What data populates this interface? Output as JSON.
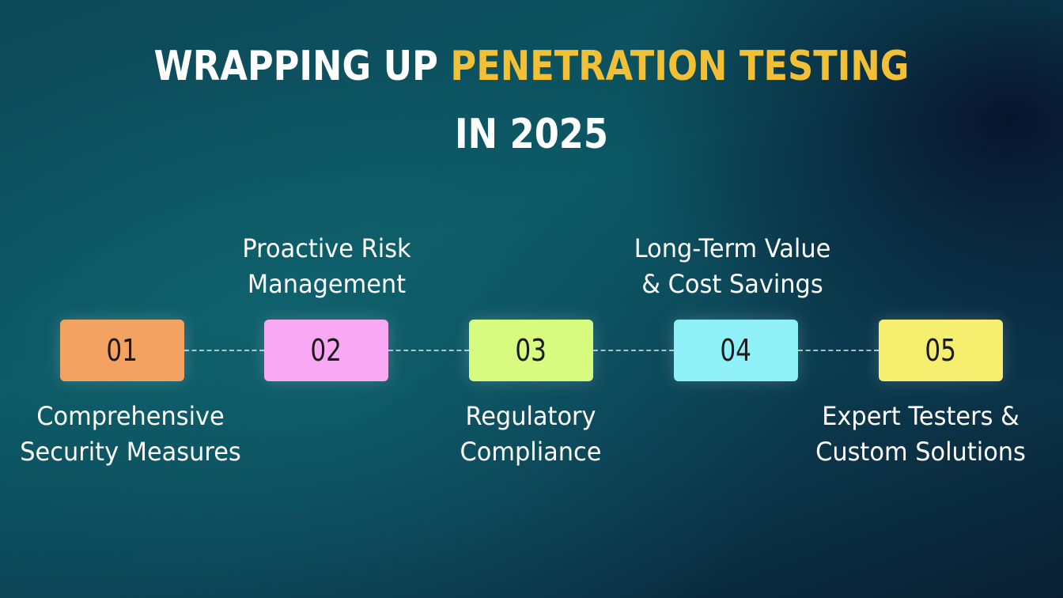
{
  "title": {
    "line1_plain": "WRAPPING UP ",
    "line1_accent": "PENETRATION TESTING",
    "line2": "IN 2025"
  },
  "colors": {
    "accent": "#f2c037",
    "step_01": "#f4a261",
    "step_02": "#f9a8f3",
    "step_03": "#d6fb7f",
    "step_04": "#8ff0f7",
    "step_05": "#f5ee6e"
  },
  "steps": [
    {
      "number": "01",
      "label_lines": [
        "Comprehensive",
        "Security Measures"
      ],
      "label_position": "below"
    },
    {
      "number": "02",
      "label_lines": [
        "Proactive Risk",
        "Management"
      ],
      "label_position": "above"
    },
    {
      "number": "03",
      "label_lines": [
        "Regulatory",
        "Compliance"
      ],
      "label_position": "below"
    },
    {
      "number": "04",
      "label_lines": [
        "Long-Term Value",
        "& Cost Savings"
      ],
      "label_position": "above"
    },
    {
      "number": "05",
      "label_lines": [
        "Expert Testers &",
        "Custom Solutions"
      ],
      "label_position": "below"
    }
  ]
}
